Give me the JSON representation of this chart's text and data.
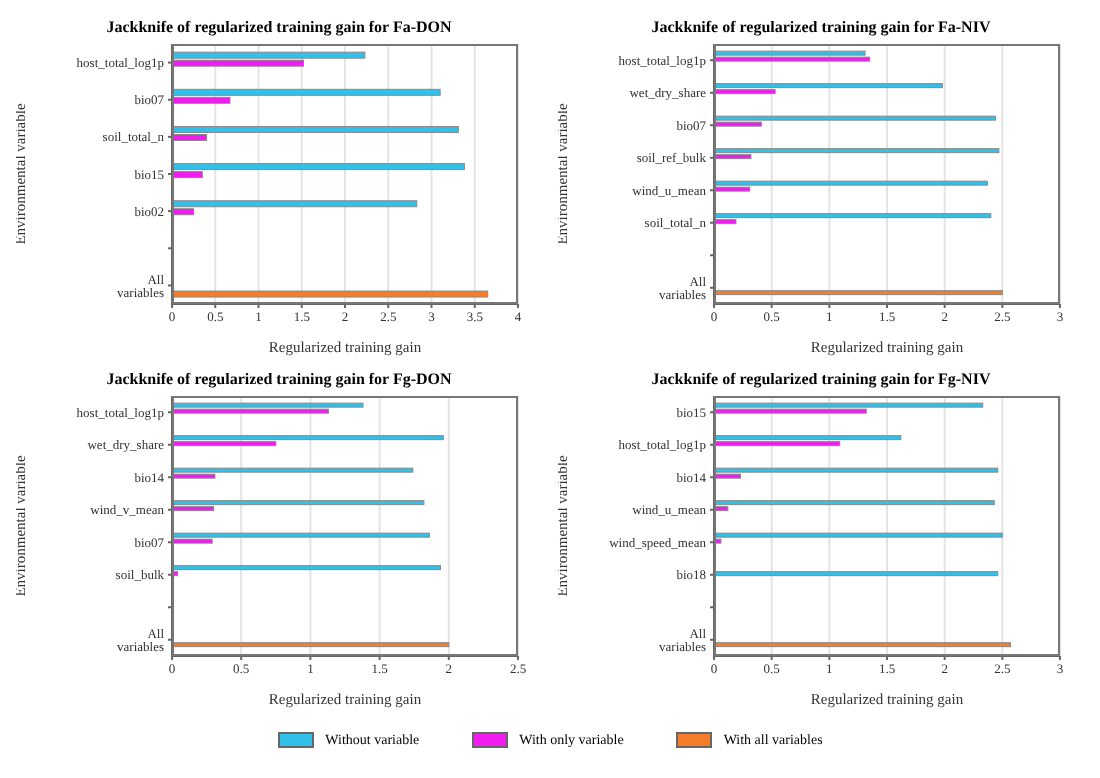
{
  "chart_data": [
    {
      "type": "bar",
      "orientation": "horizontal",
      "title": "Jackknife of regularized training gain for Fa-DON",
      "xlabel": "Regularized training gain",
      "ylabel": "Environmental variable",
      "categories": [
        "host_total_log1p",
        "bio07",
        "soil_total_n",
        "bio15",
        "bio02",
        null,
        "All variables"
      ],
      "series": [
        {
          "name": "Without variable",
          "color": "#33c0e8",
          "values": [
            2.23,
            3.1,
            3.31,
            3.38,
            2.83,
            null,
            null
          ]
        },
        {
          "name": "With only variable",
          "color": "#f01cf0",
          "values": [
            1.52,
            0.67,
            0.4,
            0.35,
            0.25,
            null,
            null
          ]
        },
        {
          "name": "With all variables",
          "color": "#f57c2a",
          "values": [
            null,
            null,
            null,
            null,
            null,
            null,
            3.65
          ]
        }
      ],
      "xlim": [
        0,
        4
      ],
      "xticks": [
        0,
        0.5,
        1,
        1.5,
        2,
        2.5,
        3,
        3.5,
        4
      ],
      "grid": "x",
      "legend": "bottom"
    },
    {
      "type": "bar",
      "orientation": "horizontal",
      "title": "Jackknife of regularized training gain for Fa-NIV",
      "xlabel": "Regularized training gain",
      "ylabel": "Environmental variable",
      "categories": [
        "host_total_log1p",
        "wet_dry_share",
        "bio07",
        "soil_ref_bulk",
        "wind_u_mean",
        "soil_total_n",
        null,
        "All variables"
      ],
      "series": [
        {
          "name": "Without variable",
          "color": "#33c0e8",
          "values": [
            1.31,
            1.98,
            2.44,
            2.47,
            2.37,
            2.4,
            null,
            null
          ]
        },
        {
          "name": "With only variable",
          "color": "#f01cf0",
          "values": [
            1.35,
            0.53,
            0.41,
            0.32,
            0.31,
            0.19,
            null,
            null
          ]
        },
        {
          "name": "With all variables",
          "color": "#f57c2a",
          "values": [
            null,
            null,
            null,
            null,
            null,
            null,
            null,
            2.5
          ]
        }
      ],
      "xlim": [
        0,
        3
      ],
      "xticks": [
        0,
        0.5,
        1,
        1.5,
        2,
        2.5,
        3
      ],
      "grid": "x",
      "legend": "bottom"
    },
    {
      "type": "bar",
      "orientation": "horizontal",
      "title": "Jackknife of regularized training gain for Fg-DON",
      "xlabel": "Regularized training gain",
      "ylabel": "Environmental variable",
      "categories": [
        "host_total_log1p",
        "wet_dry_share",
        "bio14",
        "wind_v_mean",
        "bio07",
        "soil_bulk",
        null,
        "All variables"
      ],
      "series": [
        {
          "name": "Without variable",
          "color": "#33c0e8",
          "values": [
            1.38,
            1.96,
            1.74,
            1.82,
            1.86,
            1.94,
            null,
            null
          ]
        },
        {
          "name": "With only variable",
          "color": "#f01cf0",
          "values": [
            1.13,
            0.75,
            0.31,
            0.3,
            0.29,
            0.04,
            null,
            null
          ]
        },
        {
          "name": "With all variables",
          "color": "#f57c2a",
          "values": [
            null,
            null,
            null,
            null,
            null,
            null,
            null,
            2.0
          ]
        }
      ],
      "xlim": [
        0,
        2.5
      ],
      "xticks": [
        0,
        0.5,
        1,
        1.5,
        2,
        2.5
      ],
      "grid": "x",
      "legend": "bottom"
    },
    {
      "type": "bar",
      "orientation": "horizontal",
      "title": "Jackknife of regularized training gain for Fg-NIV",
      "xlabel": "Regularized training gain",
      "ylabel": "Environmental variable",
      "categories": [
        "bio15",
        "host_total_log1p",
        "bio14",
        "wind_u_mean",
        "wind_speed_mean",
        "bio18",
        null,
        "All variables"
      ],
      "series": [
        {
          "name": "Without variable",
          "color": "#33c0e8",
          "values": [
            2.33,
            1.62,
            2.46,
            2.43,
            2.5,
            2.46,
            null,
            null
          ]
        },
        {
          "name": "With only variable",
          "color": "#f01cf0",
          "values": [
            1.32,
            1.09,
            0.23,
            0.12,
            0.06,
            null,
            null,
            null
          ]
        },
        {
          "name": "With all variables",
          "color": "#f57c2a",
          "values": [
            null,
            null,
            null,
            null,
            null,
            null,
            null,
            2.57
          ]
        }
      ],
      "xlim": [
        0,
        3
      ],
      "xticks": [
        0,
        0.5,
        1,
        1.5,
        2,
        2.5,
        3
      ],
      "grid": "x",
      "legend": "bottom"
    }
  ]
}
